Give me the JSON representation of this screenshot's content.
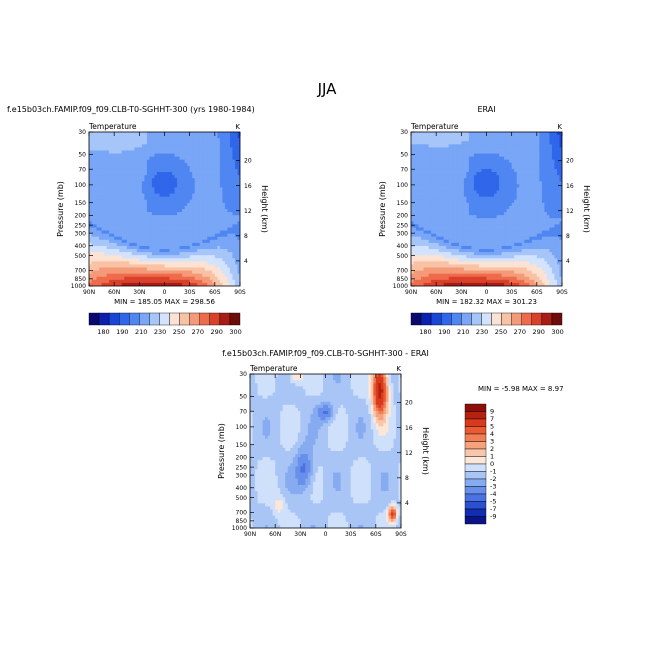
{
  "page": {
    "title": "JJA"
  },
  "chart_data": [
    {
      "type": "heatmap",
      "panel": "model",
      "title": "f.e15b03ch.FAMIP.f09_f09.CLB-T0-SGHHT-300 (yrs 1980-1984)",
      "subtitle": "Temperature",
      "units": "K",
      "xlabel": "",
      "ylabel": "Pressure (mb)",
      "y2label": "Height (km)",
      "x_ticks": [
        "90N",
        "60N",
        "30N",
        "0",
        "30S",
        "60S",
        "90S"
      ],
      "y_ticks": [
        "30",
        "50",
        "70",
        "100",
        "150",
        "200",
        "250",
        "300",
        "400",
        "500",
        "700",
        "850",
        "1000"
      ],
      "y2_ticks": [
        "20",
        "16",
        "12",
        "8",
        "4"
      ],
      "min_label": "MIN = 185.05",
      "max_label": "MAX = 298.56",
      "levels": [
        "180",
        "190",
        "200",
        "210",
        "220",
        "230",
        "240",
        "250",
        "260",
        "270",
        "280",
        "290",
        "300"
      ],
      "level_labels": [
        "180",
        "190",
        "210",
        "230",
        "250",
        "270",
        "290",
        "300"
      ],
      "colors": [
        "#0a0a6e",
        "#0b1fb0",
        "#1a46d8",
        "#2f66ea",
        "#4f86f2",
        "#79a6f6",
        "#a6c6fa",
        "#d3e3fd",
        "#fbe2d2",
        "#f9c2a5",
        "#f59a78",
        "#ee6b4c",
        "#d9412b",
        "#a81e17",
        "#6e0c0a"
      ]
    },
    {
      "type": "heatmap",
      "panel": "obs",
      "title": "ERAI",
      "subtitle": "Temperature",
      "units": "K",
      "xlabel": "",
      "ylabel": "Pressure (mb)",
      "y2label": "Height (km)",
      "x_ticks": [
        "90N",
        "60N",
        "30N",
        "0",
        "30S",
        "60S",
        "90S"
      ],
      "y_ticks": [
        "30",
        "50",
        "70",
        "100",
        "150",
        "200",
        "250",
        "300",
        "400",
        "500",
        "700",
        "850",
        "1000"
      ],
      "y2_ticks": [
        "20",
        "16",
        "12",
        "8",
        "4"
      ],
      "min_label": "MIN = 182.32",
      "max_label": "MAX = 301.23",
      "levels": [
        "180",
        "190",
        "200",
        "210",
        "220",
        "230",
        "240",
        "250",
        "260",
        "270",
        "280",
        "290",
        "300"
      ],
      "level_labels": [
        "180",
        "190",
        "210",
        "230",
        "250",
        "270",
        "290",
        "300"
      ],
      "colors": [
        "#0a0a6e",
        "#0b1fb0",
        "#1a46d8",
        "#2f66ea",
        "#4f86f2",
        "#79a6f6",
        "#a6c6fa",
        "#d3e3fd",
        "#fbe2d2",
        "#f9c2a5",
        "#f59a78",
        "#ee6b4c",
        "#d9412b",
        "#a81e17",
        "#6e0c0a"
      ]
    },
    {
      "type": "heatmap",
      "panel": "difference",
      "title": "f.e15b03ch.FAMIP.f09_f09.CLB-T0-SGHHT-300 - ERAI",
      "subtitle": "Temperature",
      "units": "K",
      "xlabel": "",
      "ylabel": "Pressure (mb)",
      "y2label": "Height (km)",
      "x_ticks": [
        "90N",
        "60N",
        "30N",
        "0",
        "30S",
        "60S",
        "90S"
      ],
      "y_ticks": [
        "30",
        "50",
        "70",
        "100",
        "150",
        "200",
        "250",
        "300",
        "400",
        "500",
        "700",
        "850",
        "1000"
      ],
      "y2_ticks": [
        "20",
        "16",
        "12",
        "8",
        "4"
      ],
      "min_label": "MIN = -5.98",
      "max_label": "MAX = 8.97",
      "levels": [
        "9",
        "7",
        "5",
        "4",
        "3",
        "2",
        "1",
        "0",
        "-1",
        "-2",
        "-3",
        "-4",
        "-5",
        "-7",
        "-9"
      ],
      "colors": [
        "#8e0f0a",
        "#b5200f",
        "#d83a1d",
        "#ea5b34",
        "#f27e54",
        "#f6a27c",
        "#f8c6aa",
        "#fbe6d8",
        "#cfe0fb",
        "#a9c5f6",
        "#87abf1",
        "#6890eb",
        "#4a72e2",
        "#2b50d0",
        "#122db0",
        "#0a148a"
      ]
    }
  ]
}
